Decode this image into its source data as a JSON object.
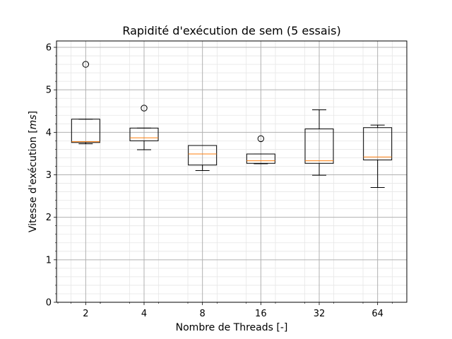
{
  "chart_data": {
    "type": "box",
    "title": "Rapidité d'exécution de sem (5 essais)",
    "xlabel": "Nombre de Threads [-]",
    "ylabel_prefix": "Vitesse d'exécution [",
    "ylabel_unit": "ms",
    "ylabel_suffix": "]",
    "categories": [
      "2",
      "4",
      "8",
      "16",
      "32",
      "64"
    ],
    "ylim": [
      0,
      6.15
    ],
    "yticks": [
      0,
      1,
      2,
      3,
      4,
      5,
      6
    ],
    "grid": {
      "major": true,
      "minor": true
    },
    "colors": {
      "box": "#000000",
      "median": "#ff7f0e",
      "grid_major": "#b0b0b0",
      "grid_minor": "#e6e6e6"
    },
    "boxes": [
      {
        "category": "2",
        "whisker_low": 3.73,
        "q1": 3.76,
        "median": 3.78,
        "q3": 4.31,
        "whisker_high": 4.31,
        "fliers": [
          5.6
        ]
      },
      {
        "category": "4",
        "whisker_low": 3.59,
        "q1": 3.8,
        "median": 3.87,
        "q3": 4.1,
        "whisker_high": 4.1,
        "fliers": [
          4.57
        ]
      },
      {
        "category": "8",
        "whisker_low": 3.1,
        "q1": 3.23,
        "median": 3.49,
        "q3": 3.69,
        "whisker_high": 3.69,
        "fliers": []
      },
      {
        "category": "16",
        "whisker_low": 3.26,
        "q1": 3.27,
        "median": 3.33,
        "q3": 3.49,
        "whisker_high": 3.49,
        "fliers": [
          3.85
        ]
      },
      {
        "category": "32",
        "whisker_low": 2.99,
        "q1": 3.27,
        "median": 3.33,
        "q3": 4.08,
        "whisker_high": 4.53,
        "fliers": []
      },
      {
        "category": "64",
        "whisker_low": 2.7,
        "q1": 3.35,
        "median": 3.42,
        "q3": 4.11,
        "whisker_high": 4.17,
        "fliers": []
      }
    ]
  }
}
